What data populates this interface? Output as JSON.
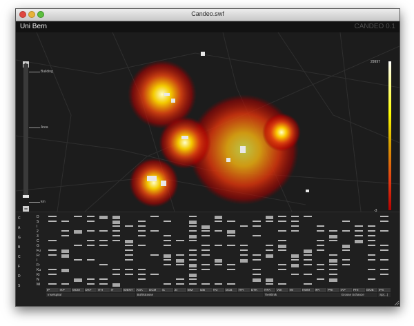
{
  "window": {
    "title": "Candeo.swf"
  },
  "app": {
    "name": "Uni Bern",
    "version": "CANDEO 0.1"
  },
  "zoom": {
    "plus": "+",
    "minus": "−",
    "labels": [
      {
        "text": "Building"
      },
      {
        "text": "Area"
      },
      {
        "text": "km"
      }
    ]
  },
  "legend": {
    "max": "29997",
    "min": "-3"
  },
  "matrix": {
    "row_labels_a": [
      "C",
      "A",
      "G",
      "B",
      "C",
      "F",
      "D",
      "S"
    ],
    "row_labels_b": [
      "D",
      "S",
      "I",
      "2",
      "3",
      "C",
      "G",
      "Fu",
      "Fr",
      "I",
      "Fr",
      "Ku",
      "Ki",
      "N",
      "Mi"
    ],
    "columns": [
      "IP",
      "IKP",
      "MCM",
      "DKF",
      "ITH",
      "IT",
      "IDENT",
      "ANA",
      "DCM",
      "IC",
      "ZI",
      "ISM",
      "IZB",
      "TKI",
      "DCB",
      "ITFI",
      "DTK",
      "ITFA",
      "VDI",
      "IW",
      "KWM",
      "IPA",
      "PRI",
      "IAP",
      "PHI",
      "GIUB",
      "IPS"
    ],
    "groups": [
      "Inselspital",
      "Bühlstrasse",
      "Tierklinik",
      "Grosse Schanze",
      "Sp(...)"
    ]
  }
}
